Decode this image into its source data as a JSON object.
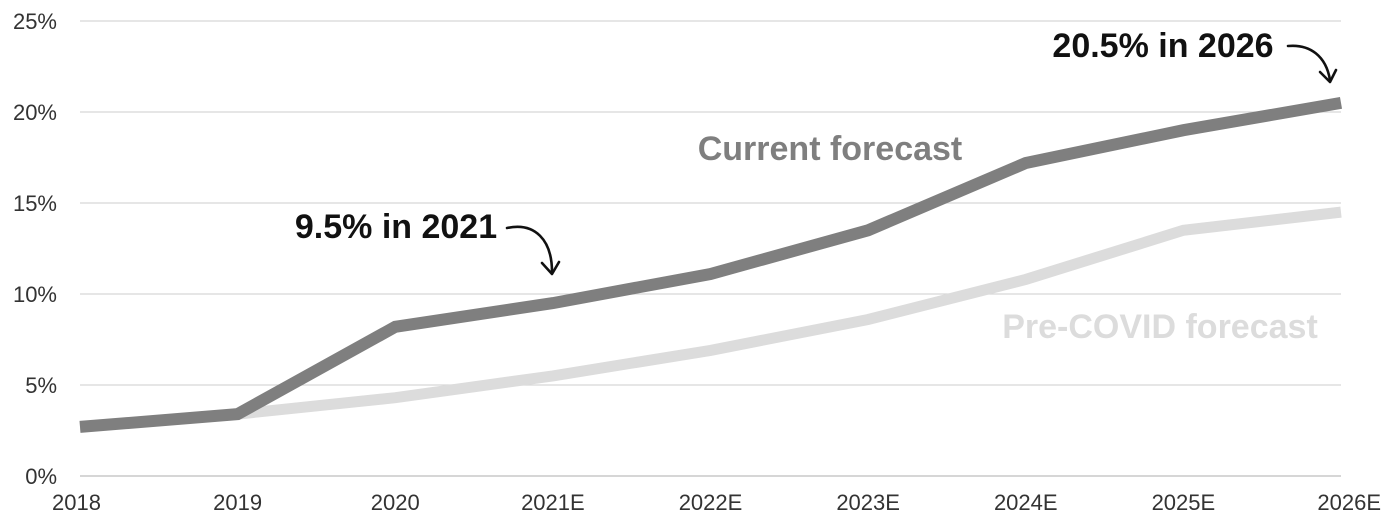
{
  "chart_data": {
    "type": "line",
    "title": "",
    "xlabel": "",
    "ylabel": "",
    "categories": [
      "2018",
      "2019",
      "2020",
      "2021E",
      "2022E",
      "2023E",
      "2024E",
      "2025E",
      "2026E"
    ],
    "y_ticks": [
      "0%",
      "5%",
      "10%",
      "15%",
      "20%",
      "25%"
    ],
    "y_tick_values": [
      0,
      5,
      10,
      15,
      20,
      25
    ],
    "ylim": [
      0,
      25
    ],
    "grid": true,
    "legend": "none",
    "series": [
      {
        "name": "Pre-COVID forecast",
        "color": "#dcdcdc",
        "values": [
          2.7,
          3.4,
          4.3,
          5.5,
          6.9,
          8.6,
          10.8,
          13.5,
          14.5
        ]
      },
      {
        "name": "Current forecast",
        "color": "#7f7f7f",
        "values": [
          2.7,
          3.4,
          8.2,
          9.5,
          11.1,
          13.5,
          17.2,
          19.0,
          20.5
        ]
      }
    ],
    "annotations": [
      {
        "text": "9.5% in 2021",
        "points_to_category": "2021E",
        "points_to_value": 9.5
      },
      {
        "text": "20.5% in 2026",
        "points_to_category": "2026E",
        "points_to_value": 20.5
      }
    ]
  }
}
